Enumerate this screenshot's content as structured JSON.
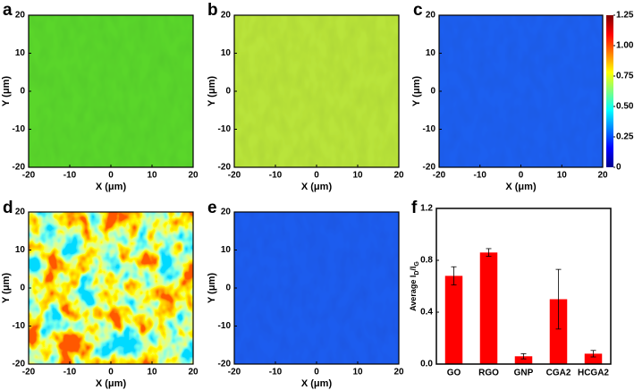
{
  "chart_data": [
    {
      "type": "heatmap",
      "label": "a",
      "colormap": "jet",
      "color": "#5ad62c",
      "xlabel": "X (μm)",
      "ylabel": "Y (μm)",
      "xlim": [
        -20,
        20
      ],
      "ylim": [
        -20,
        20
      ],
      "xticks": [
        -20,
        -10,
        0,
        10,
        20
      ],
      "yticks": [
        -20,
        -10,
        0,
        10,
        20
      ]
    },
    {
      "type": "heatmap",
      "label": "b",
      "colormap": "jet",
      "color": "#b9e43a",
      "xlabel": "X (μm)",
      "ylabel": "Y (μm)",
      "xlim": [
        -20,
        20
      ],
      "ylim": [
        -20,
        20
      ],
      "xticks": [
        -20,
        -10,
        0,
        10,
        20
      ],
      "yticks": [
        -20,
        -10,
        0,
        10,
        20
      ]
    },
    {
      "type": "heatmap",
      "label": "c",
      "colormap": "jet",
      "color": "#1f5ff0",
      "xlabel": "X (μm)",
      "ylabel": "Y (μm)",
      "xlim": [
        -20,
        20
      ],
      "ylim": [
        -20,
        20
      ],
      "xticks": [
        -20,
        -10,
        0,
        10,
        20
      ],
      "yticks": [
        -20,
        -10,
        0,
        10,
        20
      ],
      "colorbar": {
        "lim": [
          0,
          1.25
        ],
        "ticks": [
          0,
          0.25,
          {
            "value": 0.5,
            "label": "0.50"
          },
          0.75,
          {
            "value": 1,
            "label": "1.00"
          },
          1.25
        ]
      }
    },
    {
      "type": "heatmap",
      "label": "d",
      "colormap": "jet",
      "xlabel": "X (μm)",
      "ylabel": "Y (μm)",
      "xlim": [
        -20,
        20
      ],
      "ylim": [
        -20,
        20
      ],
      "xticks": [
        -20,
        -10,
        0,
        10,
        20
      ],
      "yticks": [
        -20,
        -10,
        0,
        10,
        20
      ]
    },
    {
      "type": "heatmap",
      "label": "e",
      "colormap": "jet",
      "color": "#1f5cef",
      "xlabel": "X (μm)",
      "ylabel": "Y (μm)",
      "xlim": [
        -20,
        20
      ],
      "ylim": [
        -20,
        20
      ],
      "xticks": [
        -20,
        -10,
        0,
        10,
        20
      ],
      "yticks": [
        -20,
        -10,
        0,
        10,
        20
      ]
    },
    {
      "type": "bar",
      "label": "f",
      "ylabel_parts": [
        "Average I",
        "D",
        "/I",
        "G"
      ],
      "categories": [
        "GO",
        "RGO",
        "GNP",
        "CGA2",
        "HCGA2"
      ],
      "values": [
        0.68,
        0.86,
        0.06,
        0.5,
        0.08
      ],
      "errors": [
        0.07,
        0.03,
        0.02,
        0.23,
        0.025
      ],
      "color": "#ff0000",
      "ylim": [
        0,
        1.2
      ],
      "yticks": [
        {
          "value": 0,
          "label": "0.0"
        },
        0.4,
        0.8,
        1.2
      ]
    }
  ]
}
